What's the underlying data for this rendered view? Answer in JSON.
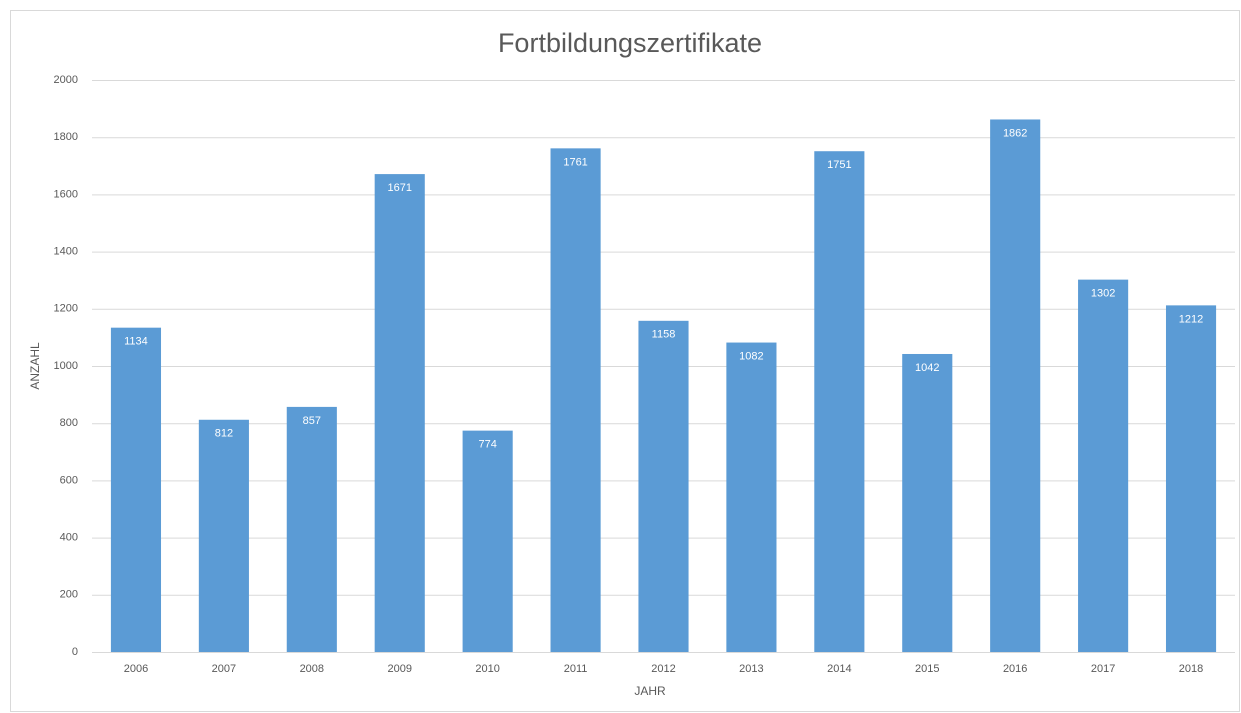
{
  "chart_data": {
    "type": "bar",
    "title": "Fortbildungszertifikate",
    "x_label": "JAHR",
    "y_label": "ANZAHL",
    "categories": [
      "2006",
      "2007",
      "2008",
      "2009",
      "2010",
      "2011",
      "2012",
      "2013",
      "2014",
      "2015",
      "2016",
      "2017",
      "2018"
    ],
    "values": [
      1134,
      812,
      857,
      1671,
      774,
      1761,
      1158,
      1082,
      1751,
      1042,
      1862,
      1302,
      1212
    ],
    "color": "#5b9bd5",
    "ylim": [
      0,
      2000
    ],
    "yticks": [
      0,
      200,
      400,
      600,
      800,
      1000,
      1200,
      1400,
      1600,
      1800,
      2000
    ],
    "grid": true,
    "data_labels": true
  }
}
